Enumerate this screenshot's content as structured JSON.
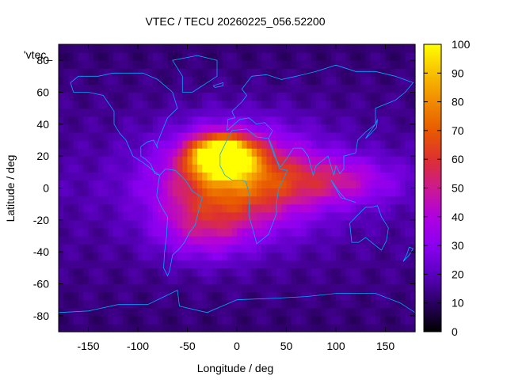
{
  "chart_data": {
    "type": "heatmap",
    "title": "VTEC / TECU 20260225_056.52200",
    "key_label": "'vtec_",
    "xlabel": "Longitude / deg",
    "ylabel": "Latitude / deg",
    "xlim": [
      -180,
      180
    ],
    "ylim": [
      -90,
      90
    ],
    "x_ticks": [
      -150,
      -100,
      -50,
      0,
      50,
      100,
      150
    ],
    "y_ticks": [
      -80,
      -60,
      -40,
      -20,
      0,
      20,
      40,
      60,
      80
    ],
    "colorbar": {
      "range": [
        0,
        100
      ],
      "ticks": [
        0,
        10,
        20,
        30,
        40,
        50,
        60,
        70,
        80,
        90,
        100
      ],
      "palette": [
        "#000000",
        "#2a0060",
        "#5a00c0",
        "#8a00f0",
        "#b000e0",
        "#cc1a90",
        "#dd3030",
        "#e85a00",
        "#f08a00",
        "#f8c000",
        "#ffff00"
      ]
    },
    "grid": false,
    "coastline_color": "#00a8ff",
    "enhancement_regions": [
      {
        "lon": -15,
        "lat": 20,
        "peak": 95,
        "lon_spread": 30,
        "lat_spread": 12
      },
      {
        "lon": 0,
        "lat": 5,
        "peak": 55,
        "lon_spread": 75,
        "lat_spread": 30
      },
      {
        "lon": 100,
        "lat": 5,
        "peak": 25,
        "lon_spread": 60,
        "lat_spread": 15
      },
      {
        "lon": -35,
        "lat": -25,
        "peak": 20,
        "lon_spread": 45,
        "lat_spread": 20
      }
    ],
    "background_tecu": 18
  }
}
